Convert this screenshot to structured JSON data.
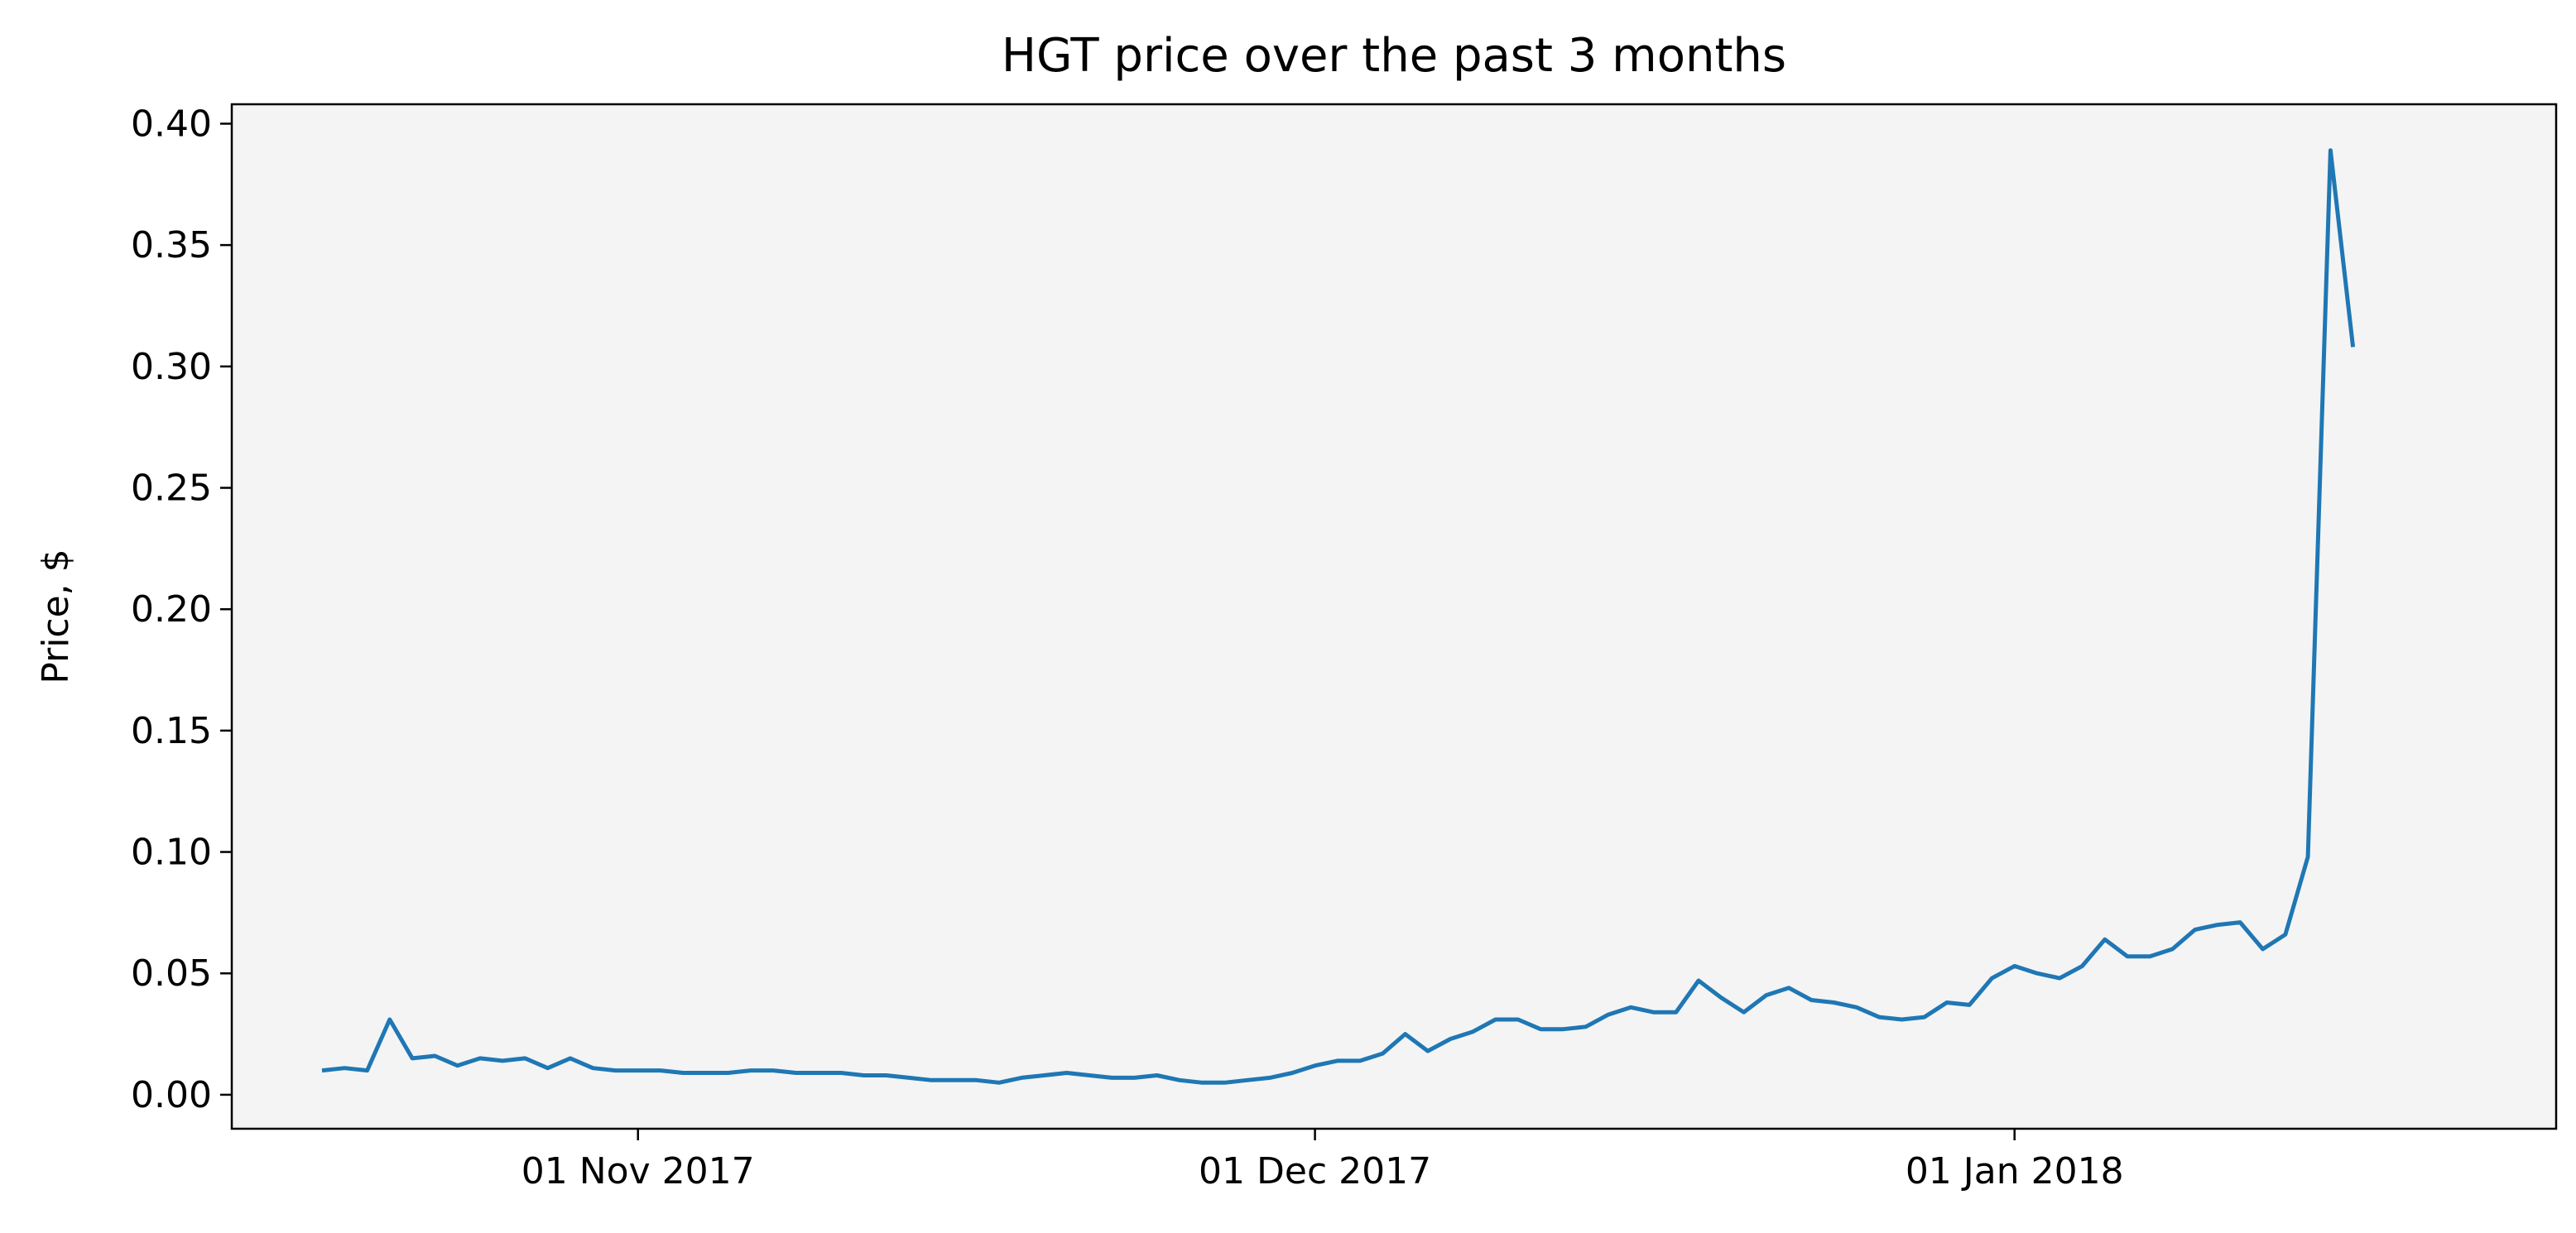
{
  "chart_data": {
    "type": "line",
    "title": "HGT price over the past 3 months",
    "xlabel": "",
    "ylabel": "Price, $",
    "x_start_date": "2017-10-18",
    "x_step_days": 1,
    "x_range": [
      "2017-10-14",
      "2018-01-25"
    ],
    "ylim": [
      -0.014,
      0.408
    ],
    "grid": false,
    "legend": "none",
    "x_ticks": [
      {
        "date": "2017-11-01",
        "label": "01 Nov 2017"
      },
      {
        "date": "2017-12-01",
        "label": "01 Dec 2017"
      },
      {
        "date": "2018-01-01",
        "label": "01 Jan 2018"
      }
    ],
    "y_ticks": [
      {
        "value": 0.0,
        "label": "0.00"
      },
      {
        "value": 0.05,
        "label": "0.05"
      },
      {
        "value": 0.1,
        "label": "0.10"
      },
      {
        "value": 0.15,
        "label": "0.15"
      },
      {
        "value": 0.2,
        "label": "0.20"
      },
      {
        "value": 0.25,
        "label": "0.25"
      },
      {
        "value": 0.3,
        "label": "0.30"
      },
      {
        "value": 0.35,
        "label": "0.35"
      },
      {
        "value": 0.4,
        "label": "0.40"
      }
    ],
    "series": [
      {
        "color": "#1f77b4",
        "values": [
          0.01,
          0.011,
          0.01,
          0.031,
          0.015,
          0.016,
          0.012,
          0.015,
          0.014,
          0.015,
          0.011,
          0.015,
          0.011,
          0.01,
          0.01,
          0.01,
          0.009,
          0.009,
          0.009,
          0.01,
          0.01,
          0.009,
          0.009,
          0.009,
          0.008,
          0.008,
          0.007,
          0.006,
          0.006,
          0.006,
          0.005,
          0.007,
          0.008,
          0.009,
          0.008,
          0.007,
          0.007,
          0.008,
          0.006,
          0.005,
          0.005,
          0.006,
          0.007,
          0.009,
          0.012,
          0.014,
          0.014,
          0.017,
          0.025,
          0.018,
          0.023,
          0.026,
          0.031,
          0.031,
          0.027,
          0.027,
          0.028,
          0.033,
          0.036,
          0.034,
          0.034,
          0.047,
          0.04,
          0.034,
          0.041,
          0.044,
          0.039,
          0.038,
          0.036,
          0.032,
          0.031,
          0.032,
          0.038,
          0.037,
          0.048,
          0.053,
          0.05,
          0.048,
          0.053,
          0.064,
          0.057,
          0.057,
          0.06,
          0.068,
          0.07,
          0.071,
          0.06,
          0.066,
          0.098,
          0.389,
          0.308
        ]
      }
    ]
  }
}
